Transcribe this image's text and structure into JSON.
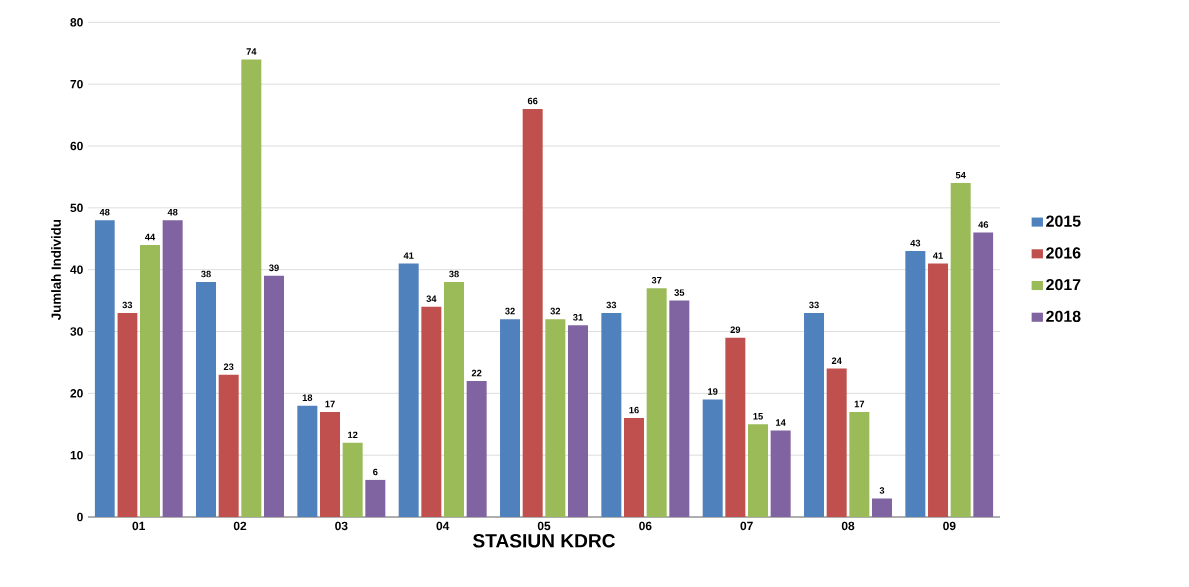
{
  "chart_data": {
    "type": "bar",
    "xlabel": "STASIUN KDRC",
    "ylabel": "Jumlah Individu",
    "categories": [
      "01",
      "02",
      "03",
      "04",
      "05",
      "06",
      "07",
      "08",
      "09"
    ],
    "series": [
      {
        "name": "2015",
        "color": "#4f81bd",
        "values": [
          48,
          38,
          18,
          41,
          32,
          33,
          19,
          33,
          43
        ]
      },
      {
        "name": "2016",
        "color": "#c0504d",
        "values": [
          33,
          23,
          17,
          34,
          66,
          16,
          29,
          24,
          41
        ]
      },
      {
        "name": "2017",
        "color": "#9bbb59",
        "values": [
          44,
          74,
          12,
          38,
          32,
          37,
          15,
          17,
          54
        ]
      },
      {
        "name": "2018",
        "color": "#8064a2",
        "values": [
          48,
          39,
          6,
          22,
          31,
          35,
          14,
          3,
          46
        ]
      }
    ],
    "ylim": [
      0,
      80
    ],
    "yticks": [
      0,
      10,
      20,
      30,
      40,
      50,
      60,
      70,
      80
    ],
    "grid": "y",
    "legend": "right",
    "data_labels": true
  }
}
